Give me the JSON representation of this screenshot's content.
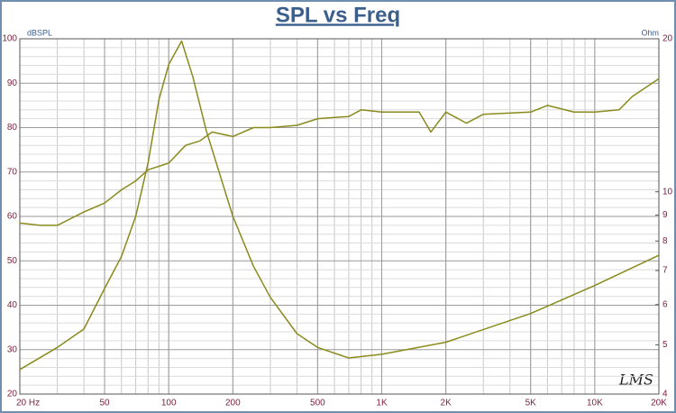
{
  "chart_data": {
    "type": "line",
    "title": "SPL vs Freq",
    "y_label": "dBSPL",
    "y2_label": "Ohm",
    "annotation": "LMS",
    "xlog": true,
    "y2log": true,
    "grid": true,
    "xlim": [
      20,
      20000
    ],
    "xticks": [
      {
        "value": 20,
        "label": "20  Hz"
      },
      50,
      100,
      200,
      500,
      {
        "value": 1000,
        "label": "1K"
      },
      {
        "value": 2000,
        "label": "2K"
      },
      {
        "value": 5000,
        "label": "5K"
      },
      {
        "value": 10000,
        "label": "10K"
      },
      {
        "value": 20000,
        "label": "20K"
      }
    ],
    "ylim": [
      20,
      100
    ],
    "yticks": [
      20,
      30,
      40,
      50,
      60,
      70,
      80,
      90,
      100
    ],
    "y2lim": [
      4,
      20
    ],
    "y2ticks": [
      4,
      5,
      6,
      7,
      8,
      9,
      10,
      20
    ],
    "series": [
      {
        "name": "SPL",
        "color": "#8a8a1c",
        "x": [
          20,
          25,
          30,
          40,
          50,
          60,
          70,
          80,
          100,
          120,
          140,
          160,
          200,
          250,
          300,
          400,
          500,
          700,
          800,
          1000,
          1500,
          1700,
          2000,
          2500,
          3000,
          5000,
          6000,
          8000,
          10000,
          13000,
          15000,
          20000
        ],
        "values": [
          58.5,
          58,
          58,
          61,
          63,
          66,
          68,
          70.5,
          72,
          76,
          77,
          79,
          78,
          80,
          80,
          80.5,
          82,
          82.5,
          84,
          83.5,
          83.5,
          79,
          83.5,
          81,
          83,
          83.5,
          85,
          83.5,
          83.5,
          84,
          87,
          91
        ]
      },
      {
        "name": "Impedance",
        "color": "#8a8a1c",
        "axis": "y2",
        "x": [
          20,
          30,
          40,
          50,
          60,
          70,
          80,
          90,
          100,
          115,
          130,
          150,
          200,
          250,
          300,
          400,
          500,
          700,
          1000,
          2000,
          5000,
          10000,
          20000
        ],
        "values": [
          4.47,
          4.94,
          5.37,
          6.45,
          7.46,
          8.95,
          11.4,
          15.2,
          17.8,
          19.8,
          16.8,
          13.2,
          8.95,
          7.14,
          6.2,
          5.26,
          4.94,
          4.71,
          4.79,
          5.06,
          5.76,
          6.54,
          7.5
        ]
      }
    ]
  }
}
